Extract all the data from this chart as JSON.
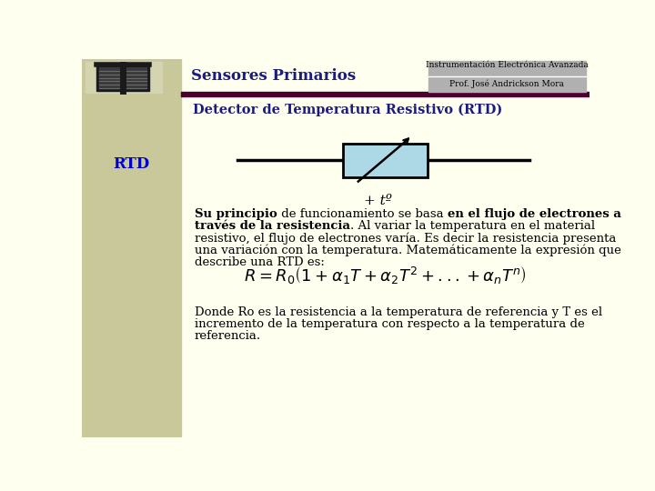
{
  "bg_color": "#FFFFF0",
  "left_panel_color": "#C8C89A",
  "header_bar_color": "#4B0030",
  "top_box_color": "#B0B0B0",
  "title_main": "Sensores Primarios",
  "title_sub1": "Instrumentación Electrónica Avanzada",
  "title_sub2": "Prof. José Andrickson Mora",
  "slide_title": "Detector de Temperatura Resistivo (RTD)",
  "left_label": "RTD",
  "formula": "$R = R_0\\left(1 + \\alpha_1 T + \\alpha_2 T^2 + ... + \\alpha_n T^n\\right)$",
  "rtd_box_color": "#ADD8E6",
  "rtd_box_edge": "#000000",
  "line_color": "#000000",
  "plus_t_label": "+ tº",
  "para1_parts": [
    [
      [
        "Su principio",
        true
      ],
      [
        " de funcionamiento se basa ",
        false
      ],
      [
        "en el flujo de electrones a",
        true
      ]
    ],
    [
      [
        "través de la resistencia",
        true
      ],
      [
        ". Al variar la temperatura en el material",
        false
      ]
    ],
    [
      [
        "resistivo, el flujo de electrones varía. Es decir la resistencia presenta",
        false
      ]
    ],
    [
      [
        "una variación con la temperatura. Matemáticamente la expresión que",
        false
      ]
    ],
    [
      [
        "describe una RTD es:",
        false
      ]
    ]
  ],
  "para2_lines": [
    "Donde Ro es la resistencia a la temperatura de referencia y T es el",
    "incremento de la temperatura con respecto a la temperatura de",
    "referencia."
  ]
}
